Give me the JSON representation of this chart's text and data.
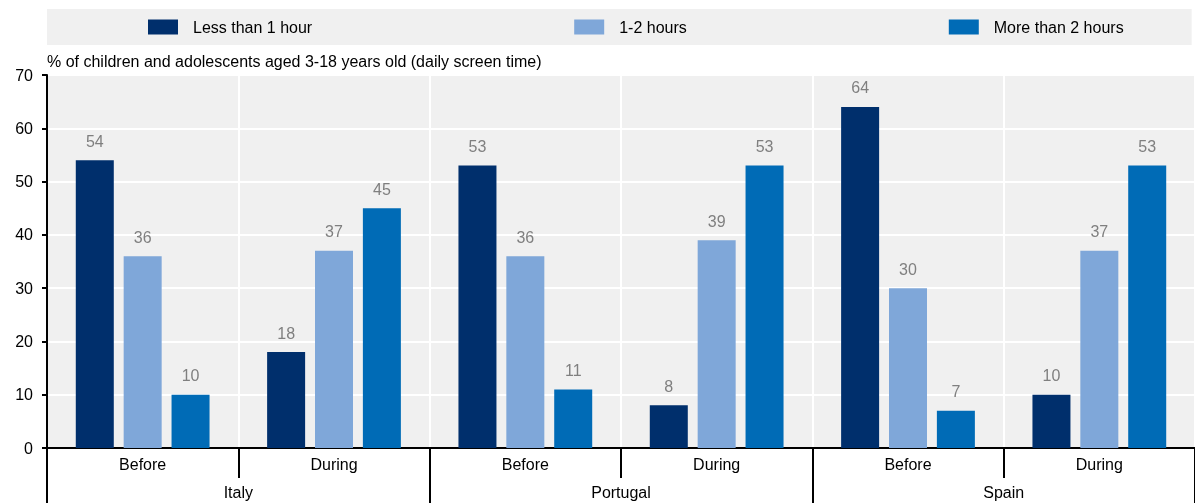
{
  "chart_data": {
    "type": "bar",
    "ylabel": "% of children and adolescents aged 3-18 years old (daily screen time)",
    "categories": [
      "Before",
      "During",
      "Before",
      "During",
      "Before",
      "During"
    ],
    "annotations": [
      "Italy",
      "Portugal",
      "Spain"
    ],
    "series": [
      {
        "name": "Less than 1 hour",
        "color": "#002f6c",
        "values": [
          54,
          18,
          53,
          8,
          64,
          10
        ]
      },
      {
        "name": "1-2 hours",
        "color": "#7fa7d9",
        "values": [
          36,
          37,
          36,
          39,
          30,
          37
        ]
      },
      {
        "name": "More than 2 hours",
        "color": "#006bb6",
        "values": [
          10,
          45,
          11,
          53,
          7,
          53
        ]
      }
    ],
    "ylim": [
      0,
      70
    ],
    "yticks": [
      0,
      10,
      20,
      30,
      40,
      50,
      60,
      70
    ],
    "data_labels": true,
    "grid": true,
    "legend": "top"
  }
}
